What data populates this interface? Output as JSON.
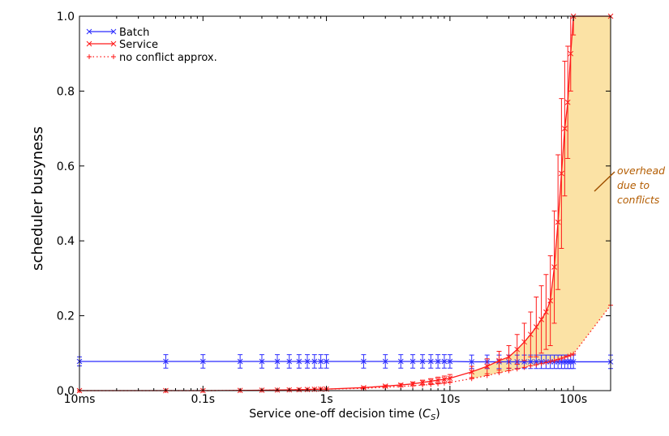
{
  "chart_data": {
    "type": "line",
    "x_scale": "log",
    "xlabel": "Service one-off decision time (C_S)",
    "xlabel_main": "Service one-off decision time (",
    "xlabel_sym": "C",
    "xlabel_sub": "S",
    "xlabel_close": ")",
    "ylabel": "scheduler busyness",
    "xlim": [
      0.01,
      200
    ],
    "ylim": [
      0.0,
      1.0
    ],
    "x_ticks": [
      {
        "value": 0.01,
        "label": "10ms"
      },
      {
        "value": 0.1,
        "label": "0.1s"
      },
      {
        "value": 1,
        "label": "1s"
      },
      {
        "value": 10,
        "label": "10s"
      },
      {
        "value": 100,
        "label": "100s"
      }
    ],
    "y_ticks": [
      {
        "value": 0.0,
        "label": "0.0"
      },
      {
        "value": 0.2,
        "label": "0.2"
      },
      {
        "value": 0.4,
        "label": "0.4"
      },
      {
        "value": 0.6,
        "label": "0.6"
      },
      {
        "value": 0.8,
        "label": "0.8"
      },
      {
        "value": 1.0,
        "label": "1.0"
      }
    ],
    "grid": false,
    "legend_position": "top-left",
    "series": [
      {
        "name": "Batch",
        "color": "#2b2bff",
        "style": "solid",
        "marker": "x",
        "x": [
          0.01,
          0.05,
          0.1,
          0.2,
          0.3,
          0.4,
          0.5,
          0.6,
          0.7,
          0.8,
          0.9,
          1,
          2,
          3,
          4,
          5,
          6,
          7,
          8,
          9,
          10,
          15,
          20,
          25,
          30,
          35,
          40,
          45,
          50,
          55,
          60,
          65,
          70,
          75,
          80,
          85,
          90,
          95,
          100,
          200
        ],
        "y": [
          0.078,
          0.078,
          0.078,
          0.078,
          0.078,
          0.078,
          0.078,
          0.078,
          0.078,
          0.078,
          0.078,
          0.078,
          0.078,
          0.078,
          0.078,
          0.078,
          0.078,
          0.078,
          0.078,
          0.078,
          0.078,
          0.077,
          0.077,
          0.077,
          0.077,
          0.077,
          0.077,
          0.077,
          0.077,
          0.077,
          0.077,
          0.077,
          0.077,
          0.077,
          0.077,
          0.077,
          0.077,
          0.077,
          0.077,
          0.077
        ],
        "err": [
          0.012,
          0.018,
          0.018,
          0.018,
          0.018,
          0.018,
          0.018,
          0.018,
          0.018,
          0.018,
          0.018,
          0.018,
          0.018,
          0.018,
          0.018,
          0.018,
          0.018,
          0.018,
          0.018,
          0.018,
          0.018,
          0.018,
          0.018,
          0.018,
          0.018,
          0.018,
          0.018,
          0.018,
          0.018,
          0.018,
          0.018,
          0.018,
          0.018,
          0.018,
          0.018,
          0.018,
          0.018,
          0.018,
          0.018,
          0.018
        ]
      },
      {
        "name": "Service",
        "color": "#ff1a1a",
        "style": "solid",
        "marker": "x",
        "x": [
          0.01,
          0.05,
          0.1,
          0.2,
          0.3,
          0.4,
          0.5,
          0.6,
          0.7,
          0.8,
          0.9,
          1,
          2,
          3,
          4,
          5,
          6,
          7,
          8,
          9,
          10,
          15,
          20,
          25,
          30,
          35,
          40,
          45,
          50,
          55,
          60,
          65,
          70,
          75,
          80,
          85,
          90,
          95,
          100,
          200
        ],
        "y": [
          0.0,
          0.0,
          0.0,
          0.0005,
          0.001,
          0.0015,
          0.002,
          0.0025,
          0.003,
          0.0035,
          0.004,
          0.004,
          0.008,
          0.012,
          0.015,
          0.018,
          0.022,
          0.025,
          0.028,
          0.03,
          0.033,
          0.05,
          0.065,
          0.08,
          0.09,
          0.11,
          0.13,
          0.15,
          0.17,
          0.19,
          0.21,
          0.24,
          0.33,
          0.45,
          0.58,
          0.7,
          0.77,
          0.9,
          1.0,
          1.0
        ],
        "err": [
          0.0,
          0.0,
          0.0,
          0.0,
          0.0,
          0.0,
          0.0,
          0.0,
          0.0,
          0.0,
          0.0,
          0.0,
          0.002,
          0.003,
          0.004,
          0.005,
          0.006,
          0.007,
          0.008,
          0.009,
          0.01,
          0.015,
          0.02,
          0.025,
          0.03,
          0.04,
          0.05,
          0.06,
          0.08,
          0.09,
          0.1,
          0.12,
          0.15,
          0.18,
          0.2,
          0.18,
          0.15,
          0.1,
          0.05,
          0.0
        ]
      },
      {
        "name": "no conflict approx.",
        "color": "#ff1a1a",
        "style": "dotted",
        "marker": "+",
        "x": [
          0.01,
          0.05,
          0.1,
          0.2,
          0.3,
          0.4,
          0.5,
          0.6,
          0.7,
          0.8,
          0.9,
          1,
          2,
          3,
          4,
          5,
          6,
          7,
          8,
          9,
          10,
          15,
          20,
          25,
          30,
          35,
          40,
          45,
          50,
          55,
          60,
          65,
          70,
          75,
          80,
          85,
          90,
          95,
          100,
          200
        ],
        "y": [
          0.0,
          0.0,
          0.0,
          0.0005,
          0.001,
          0.0015,
          0.002,
          0.0025,
          0.003,
          0.0035,
          0.004,
          0.004,
          0.006,
          0.009,
          0.011,
          0.013,
          0.015,
          0.016,
          0.018,
          0.02,
          0.022,
          0.032,
          0.04,
          0.048,
          0.053,
          0.058,
          0.062,
          0.066,
          0.069,
          0.072,
          0.075,
          0.078,
          0.08,
          0.083,
          0.086,
          0.089,
          0.092,
          0.095,
          0.098,
          0.228
        ]
      }
    ],
    "shaded_region": {
      "label": "overhead due to conflicts",
      "color": "#fbe2a5",
      "between": [
        "Service",
        "no conflict approx."
      ],
      "x_start": 15
    },
    "annotation": {
      "lines": [
        "overhead",
        "due to",
        "conflicts"
      ],
      "color": "#b35c00"
    }
  }
}
